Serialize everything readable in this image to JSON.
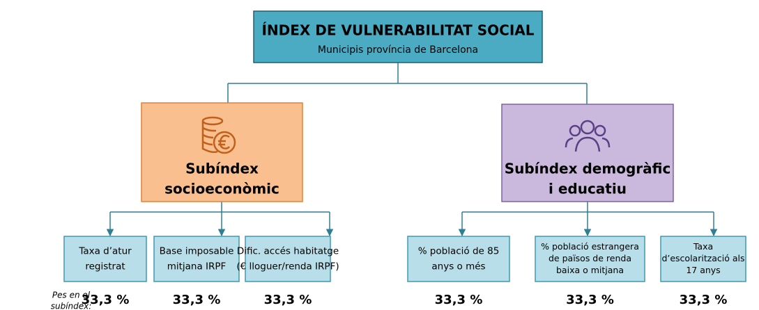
{
  "root": {
    "title": "ÍNDEX DE VULNERABILITAT SOCIAL",
    "subtitle": "Municipis província de Barcelona"
  },
  "weight_label": [
    "Pes en el",
    "subíndex:"
  ],
  "subindices": [
    {
      "lines": [
        "Subíndex",
        "socioeconòmic"
      ],
      "indicators": [
        {
          "lines": [
            "Taxa d’atur",
            "registrat"
          ],
          "weight": "33,3 %"
        },
        {
          "lines": [
            "Base imposable",
            "mitjana IRPF"
          ],
          "weight": "33,3 %"
        },
        {
          "lines": [
            "Dific. accés habitatge",
            "(€ lloguer/renda IRPF)"
          ],
          "weight": "33,3 %"
        }
      ]
    },
    {
      "lines": [
        "Subíndex demogràfic",
        "i educatiu"
      ],
      "indicators": [
        {
          "lines": [
            "% població de 85",
            "anys o més"
          ],
          "weight": "33,3 %"
        },
        {
          "lines": [
            "% població estrangera",
            "de països de renda",
            "baixa o mitjana"
          ],
          "weight": "33,3 %"
        },
        {
          "lines": [
            "Taxa",
            "d’escolarització als",
            "17 anys"
          ],
          "weight": "33,3 %"
        }
      ]
    }
  ]
}
